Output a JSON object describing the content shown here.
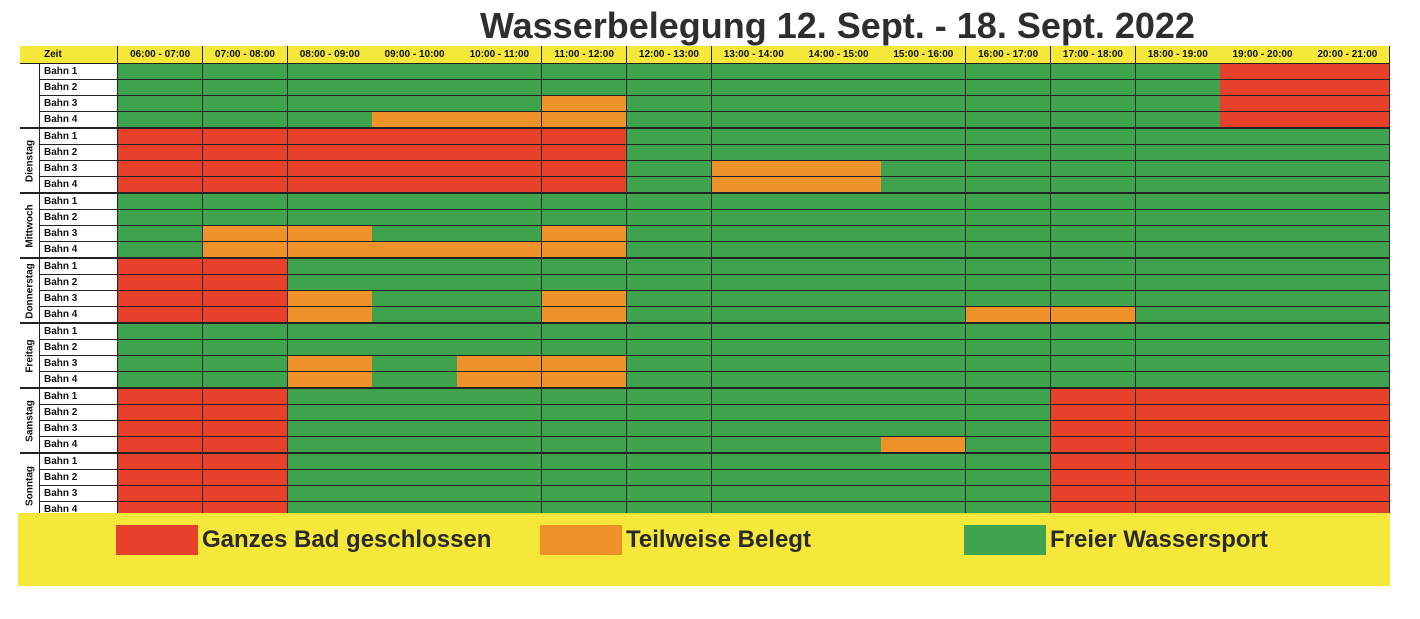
{
  "title": "Wasserbelegung 12. Sept. - 18. Sept. 2022",
  "header": {
    "first_col": "Zeit",
    "time_slots": [
      "06:00 - 07:00",
      "07:00 - 08:00",
      "08:00 - 09:00",
      "09:00 - 10:00",
      "10:00 - 11:00",
      "11:00 - 12:00",
      "12:00 - 13:00",
      "13:00 - 14:00",
      "14:00 - 15:00",
      "15:00 - 16:00",
      "16:00 - 17:00",
      "17:00 - 18:00",
      "18:00 - 19:00",
      "19:00 - 20:00",
      "20:00 - 21:00"
    ]
  },
  "colors": {
    "R": "#e8412b",
    "O": "#f0922a",
    "G": "#3fa34d"
  },
  "days": [
    {
      "name": "",
      "lanes": [
        {
          "label": "Bahn 1",
          "status": "GGGGGGGGGGGGGRR"
        },
        {
          "label": "Bahn 2",
          "status": "GGGGGGGGGGGGGRR"
        },
        {
          "label": "Bahn 3",
          "status": "GGGGGOGGGGGGGRR"
        },
        {
          "label": "Bahn 4",
          "status": "GGGOOOGGGGGGGRR"
        }
      ]
    },
    {
      "name": "Dienstag",
      "lanes": [
        {
          "label": "Bahn 1",
          "status": "RRRRRRGGGGGGGGG"
        },
        {
          "label": "Bahn 2",
          "status": "RRRRRRGGGGGGGGG"
        },
        {
          "label": "Bahn 3",
          "status": "RRRRRRGOOGGGGGG"
        },
        {
          "label": "Bahn 4",
          "status": "RRRRRRGOOGGGGGG"
        }
      ]
    },
    {
      "name": "Mittwoch",
      "lanes": [
        {
          "label": "Bahn 1",
          "status": "GGGGGGGGGGGGGGG"
        },
        {
          "label": "Bahn 2",
          "status": "GGGGGGGGGGGGGGG"
        },
        {
          "label": "Bahn 3",
          "status": "GOOGGOGGGGGGGGG"
        },
        {
          "label": "Bahn 4",
          "status": "GOOOOOGGGGGGGGG"
        }
      ]
    },
    {
      "name": "Donnerstag",
      "lanes": [
        {
          "label": "Bahn 1",
          "status": "RRGGGGGGGGGGGGG"
        },
        {
          "label": "Bahn 2",
          "status": "RRGGGGGGGGGGGGG"
        },
        {
          "label": "Bahn 3",
          "status": "RROGGOGGGGGGGGG"
        },
        {
          "label": "Bahn 4",
          "status": "RROGGOGGGGOOGGG"
        }
      ]
    },
    {
      "name": "Freitag",
      "lanes": [
        {
          "label": "Bahn 1",
          "status": "GGGGGGGGGGGGGGG"
        },
        {
          "label": "Bahn 2",
          "status": "GGGGGGGGGGGGGGG"
        },
        {
          "label": "Bahn 3",
          "status": "GGOGOOGGGGGGGGG"
        },
        {
          "label": "Bahn 4",
          "status": "GGOGOOGGGGGGGGG"
        }
      ]
    },
    {
      "name": "Samstag",
      "lanes": [
        {
          "label": "Bahn 1",
          "status": "RRGGGGGGGGGRRRR"
        },
        {
          "label": "Bahn 2",
          "status": "RRGGGGGGGGGRRRR"
        },
        {
          "label": "Bahn 3",
          "status": "RRGGGGGGGGGRRRR"
        },
        {
          "label": "Bahn 4",
          "status": "RRGGGGGGGOGRRRR"
        }
      ]
    },
    {
      "name": "Sonntag",
      "lanes": [
        {
          "label": "Bahn 1",
          "status": "RRGGGGGGGGGRRRR"
        },
        {
          "label": "Bahn 2",
          "status": "RRGGGGGGGGGRRRR"
        },
        {
          "label": "Bahn 3",
          "status": "RRGGGGGGGGGRRRR"
        },
        {
          "label": "Bahn 4",
          "status": "RRGGGGGGGGGRRRR"
        }
      ]
    }
  ],
  "legend": [
    {
      "label": "Ganzes Bad geschlossen",
      "color": "#e8412b"
    },
    {
      "label": "Teilweise Belegt",
      "color": "#f0922a"
    },
    {
      "label": "Freier Wassersport",
      "color": "#3fa34d"
    }
  ]
}
